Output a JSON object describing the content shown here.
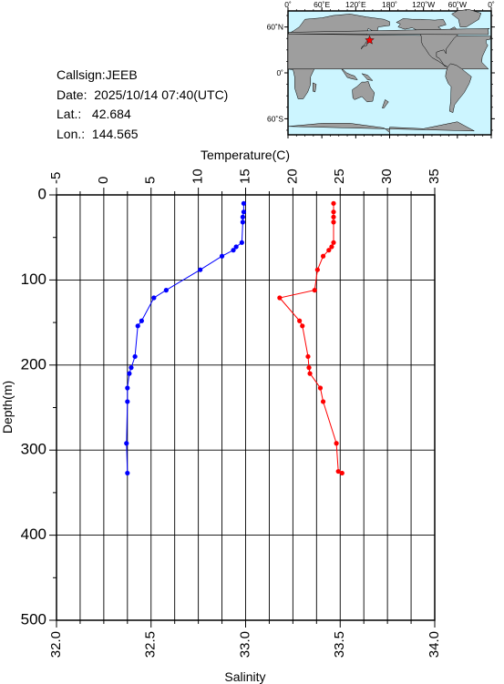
{
  "station": {
    "callsign_label": "Callsign:",
    "callsign": "JEEB",
    "date_label": "Date:",
    "date": "2025/10/14 07:40(UTC)",
    "lat_label": "Lat.:",
    "lat": "42.684",
    "lon_label": "Lon.:",
    "lon": "144.565"
  },
  "map": {
    "lon_ticks": [
      "0˚",
      "60˚E",
      "120˚E",
      "180˚",
      "120˚W",
      "60˚W",
      "0˚"
    ],
    "lat_ticks": [
      "60˚N",
      "0˚",
      "60˚S"
    ],
    "ocean_color": "#ccf5ff",
    "land_color": "#9e9e9e",
    "marker_color": "#ff0000",
    "marker_lat": 42.684,
    "marker_lon": 144.565
  },
  "chart_data": {
    "type": "line",
    "ylabel": "Depth(m)",
    "ylim": [
      500,
      0
    ],
    "yticks": [
      "0",
      "100",
      "200",
      "300",
      "400",
      "500"
    ],
    "x_top": {
      "label": "Temperature(C)",
      "range": [
        -5,
        35
      ],
      "ticks": [
        "-5",
        "0",
        "5",
        "10",
        "15",
        "20",
        "25",
        "30",
        "35"
      ]
    },
    "x_bottom": {
      "label": "Salinity",
      "range": [
        32.0,
        34.0
      ],
      "ticks": [
        "32.0",
        "32.5",
        "33.0",
        "33.5",
        "34.0"
      ]
    },
    "grid": true,
    "series": [
      {
        "axis": "top",
        "color": "#0000ff",
        "depth": [
          10,
          20,
          26,
          32,
          56,
          61,
          65,
          72,
          88,
          112,
          121,
          148,
          154,
          190,
          203,
          210,
          227,
          243,
          292,
          327
        ],
        "value": [
          14.8,
          14.8,
          14.7,
          14.7,
          14.6,
          14.0,
          13.7,
          12.5,
          10.2,
          6.6,
          5.3,
          4.0,
          3.6,
          3.3,
          2.9,
          2.7,
          2.5,
          2.5,
          2.4,
          2.5
        ]
      },
      {
        "axis": "top",
        "color": "#ff0000",
        "depth": [
          10,
          20,
          26,
          32,
          56,
          61,
          65,
          72,
          88,
          112,
          121,
          148,
          154,
          190,
          203,
          210,
          227,
          243,
          292,
          325,
          327
        ],
        "value": [
          24.3,
          24.3,
          24.3,
          24.3,
          24.3,
          24.1,
          23.8,
          23.2,
          22.6,
          22.3,
          18.6,
          20.7,
          21.0,
          21.6,
          21.7,
          21.8,
          22.9,
          23.2,
          24.6,
          24.8,
          25.2
        ]
      }
    ]
  }
}
